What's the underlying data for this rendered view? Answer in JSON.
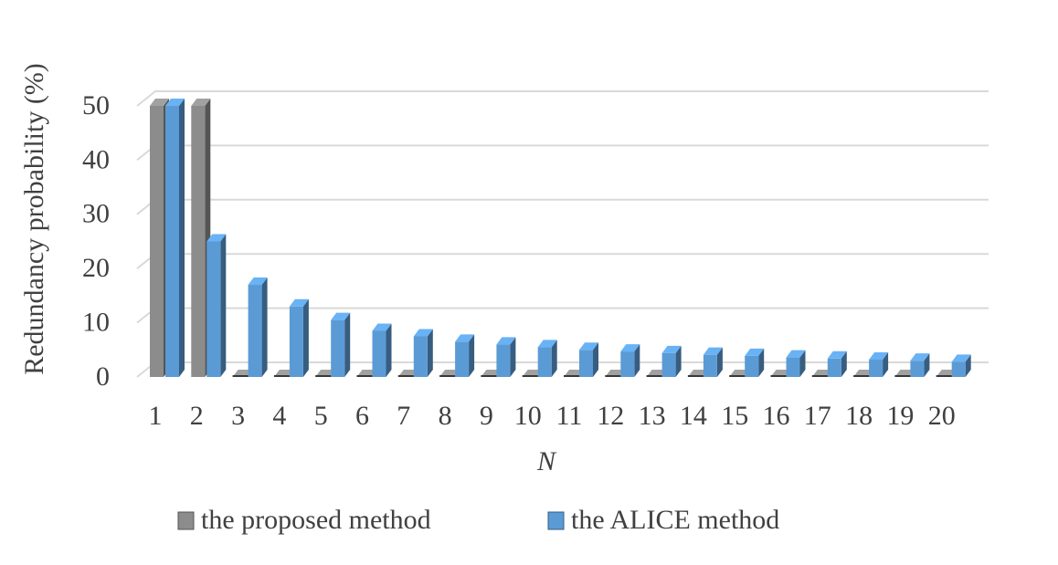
{
  "chart_data": {
    "type": "bar3d",
    "y_label": "Redundancy  probability  (%)",
    "x_label": "N",
    "categories": [
      "1",
      "2",
      "3",
      "4",
      "5",
      "6",
      "7",
      "8",
      "9",
      "10",
      "11",
      "12",
      "13",
      "14",
      "15",
      "16",
      "17",
      "18",
      "19",
      "20"
    ],
    "series": [
      {
        "name": "the proposed method",
        "color": "#8c8c8c",
        "values": [
          50,
          50,
          0,
          0,
          0,
          0,
          0,
          0,
          0,
          0,
          0,
          0,
          0,
          0,
          0,
          0,
          0,
          0,
          0,
          0
        ]
      },
      {
        "name": "the ALICE method",
        "color": "#5b9bd5",
        "values": [
          50,
          25,
          17,
          13,
          10.5,
          8.5,
          7.5,
          6.5,
          6,
          5.5,
          5,
          4.7,
          4.4,
          4.1,
          3.9,
          3.6,
          3.4,
          3.2,
          3,
          2.8
        ]
      }
    ],
    "ylim": [
      0,
      50
    ],
    "yticks": [
      0,
      10,
      20,
      30,
      40,
      50
    ],
    "grid": true
  }
}
